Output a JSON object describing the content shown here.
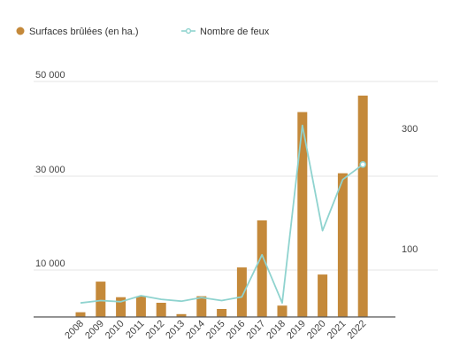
{
  "chart_data": {
    "type": "bar",
    "categories": [
      "2008",
      "2009",
      "2010",
      "2011",
      "2012",
      "2013",
      "2014",
      "2015",
      "2016",
      "2017",
      "2018",
      "2019",
      "2020",
      "2021",
      "2022"
    ],
    "series": [
      {
        "name": "Surfaces brûlées (en ha.)",
        "kind": "bar",
        "axis": "left",
        "color": "#c4893a",
        "values": [
          1000,
          7500,
          4200,
          4400,
          3000,
          600,
          4400,
          1700,
          10500,
          20500,
          2400,
          43500,
          9000,
          30500,
          47000
        ]
      },
      {
        "name": "Nombre de feux",
        "kind": "line",
        "axis": "right",
        "color": "#8fd3cf",
        "values": [
          10,
          14,
          12,
          22,
          16,
          13,
          19,
          14,
          20,
          90,
          10,
          305,
          130,
          215,
          240
        ]
      }
    ],
    "y_left": {
      "ticks": [
        "50 000",
        "30 000",
        "10 000"
      ],
      "tick_values": [
        50000,
        30000,
        10000
      ],
      "range": [
        0,
        50000
      ]
    },
    "y_right": {
      "ticks": [
        "300",
        "100"
      ],
      "tick_values": [
        300,
        100
      ],
      "range": [
        -7,
        377
      ]
    },
    "legend": {
      "placement": "top-left",
      "items": [
        {
          "label": "Surfaces brûlées (en ha.)",
          "marker": "dot"
        },
        {
          "label": "Nombre de feux",
          "marker": "line-with-hollow-dot"
        }
      ]
    },
    "grid": true,
    "title": "",
    "xlabel": "",
    "ylabel": ""
  },
  "colors": {
    "bar": "#c4893a",
    "line": "#8fd3cf",
    "gridline": "#e4e4e4",
    "axis": "#555555",
    "text": "#444444"
  }
}
